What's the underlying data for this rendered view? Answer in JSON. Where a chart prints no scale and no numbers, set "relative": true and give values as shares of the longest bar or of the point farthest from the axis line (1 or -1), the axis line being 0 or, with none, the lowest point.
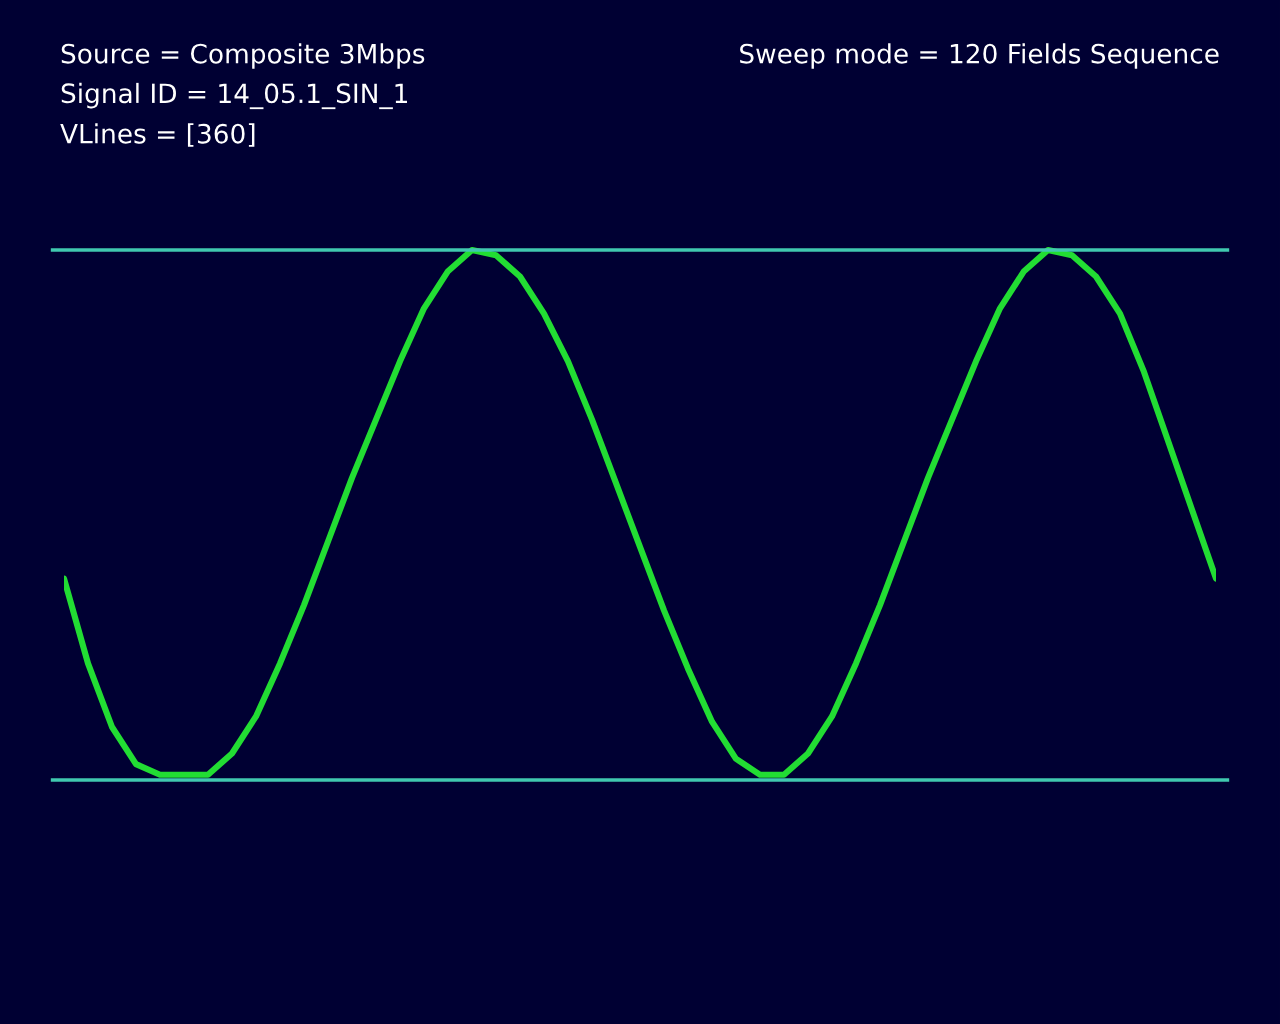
{
  "chart_data": {
    "type": "line",
    "relative": true,
    "color": "#22dd33",
    "categories": [
      null,
      null,
      null,
      null,
      null,
      null,
      null,
      null,
      null,
      null,
      null,
      null,
      null,
      null,
      null,
      null,
      null,
      null,
      null,
      null,
      null,
      null,
      null,
      null,
      null,
      null,
      null,
      null,
      null,
      null,
      null,
      null,
      null,
      null,
      null,
      null,
      null,
      null,
      null,
      null,
      null,
      null,
      null,
      null,
      null,
      null,
      null,
      null,
      null
    ],
    "values": [
      0.38,
      0.22,
      0.1,
      0.03,
      0.01,
      0.01,
      0.01,
      0.05,
      0.12,
      0.22,
      0.33,
      0.45,
      0.57,
      0.68,
      0.79,
      0.89,
      0.96,
      1.0,
      0.99,
      0.95,
      0.88,
      0.79,
      0.68,
      0.56,
      0.44,
      0.32,
      0.21,
      0.11,
      0.04,
      0.01,
      0.01,
      0.05,
      0.12,
      0.22,
      0.33,
      0.45,
      0.57,
      0.68,
      0.79,
      0.89,
      0.96,
      1.0,
      0.99,
      0.95,
      0.88,
      0.77,
      0.64,
      0.51,
      0.38
    ],
    "ref_lines": [
      {
        "axis": "y",
        "value": 1,
        "color": "#40c8b0"
      },
      {
        "axis": "y",
        "value": 0,
        "color": "#40c8b0"
      }
    ],
    "annotations": [
      "Source = Composite 3Mbps",
      "Signal ID = 14_05.1_SIN_1",
      "VLines = [360]",
      "Sweep mode = 120 Fields Sequence"
    ]
  }
}
